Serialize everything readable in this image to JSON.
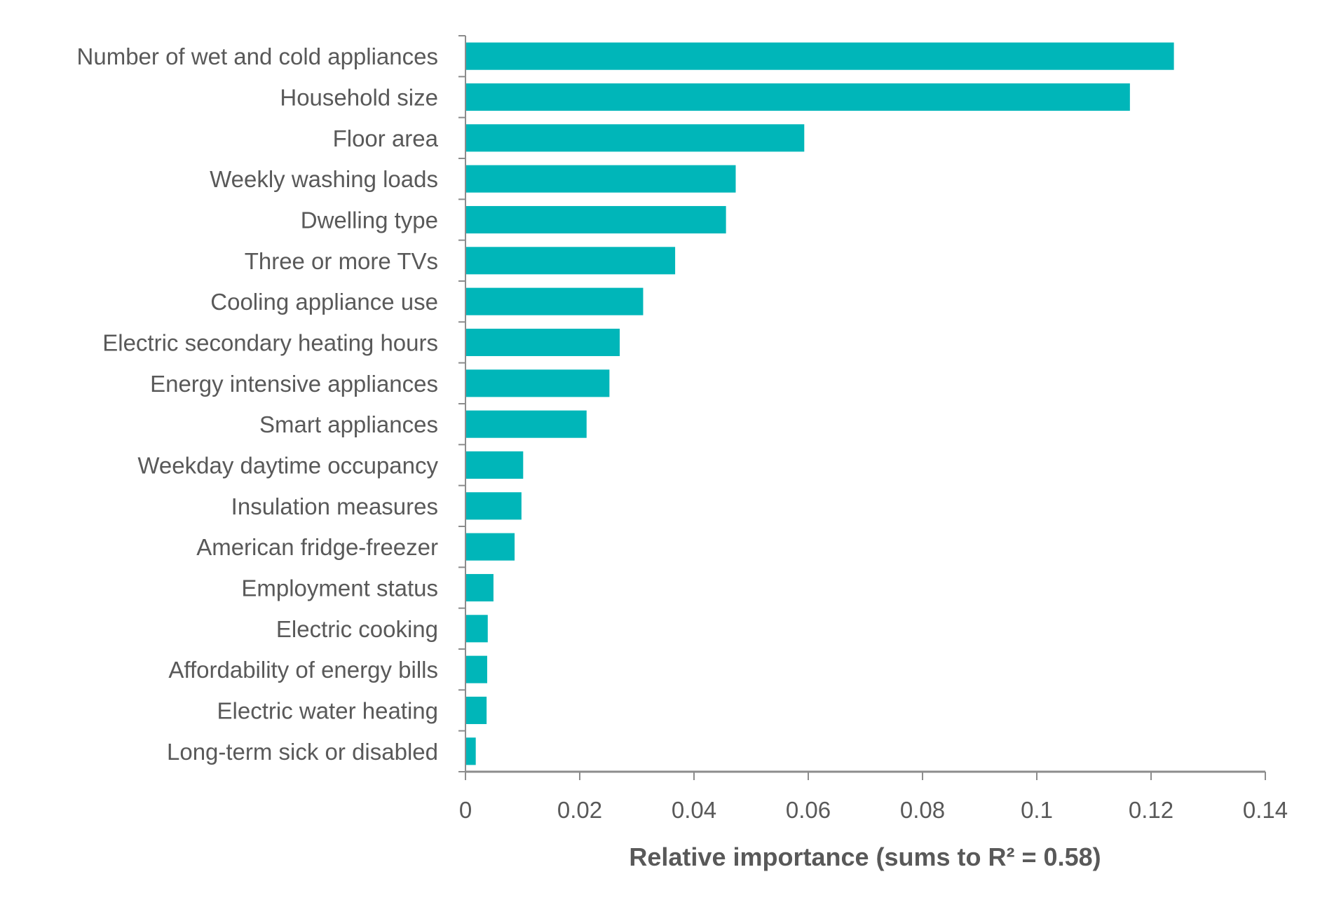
{
  "chart_data": {
    "type": "bar",
    "orientation": "horizontal",
    "categories": [
      "Number of wet and cold appliances",
      "Household size",
      "Floor area",
      "Weekly washing loads",
      "Dwelling type",
      "Three or more TVs",
      "Cooling appliance use",
      "Electric secondary heating hours",
      "Energy intensive appliances",
      "Smart appliances",
      "Weekday daytime occupancy",
      "Insulation measures",
      "American fridge-freezer",
      "Employment status",
      "Electric cooking",
      "Affordability of energy bills",
      "Electric water heating",
      "Long-term sick or disabled"
    ],
    "values": [
      0.124,
      0.1163,
      0.0593,
      0.0473,
      0.0456,
      0.0367,
      0.0311,
      0.027,
      0.0252,
      0.0212,
      0.0101,
      0.0098,
      0.0086,
      0.0049,
      0.0039,
      0.0038,
      0.0037,
      0.0018
    ],
    "xlabel": "Relative importance (sums to R² = 0.58)",
    "xlim": [
      0,
      0.14
    ],
    "xticks": [
      "0",
      "0.02",
      "0.04",
      "0.06",
      "0.08",
      "0.1",
      "0.12",
      "0.14"
    ],
    "grid": false,
    "legend": "none",
    "bar_color": "#00B6B9",
    "axis_color": "#8C8C8C",
    "text_color": "#595959"
  }
}
